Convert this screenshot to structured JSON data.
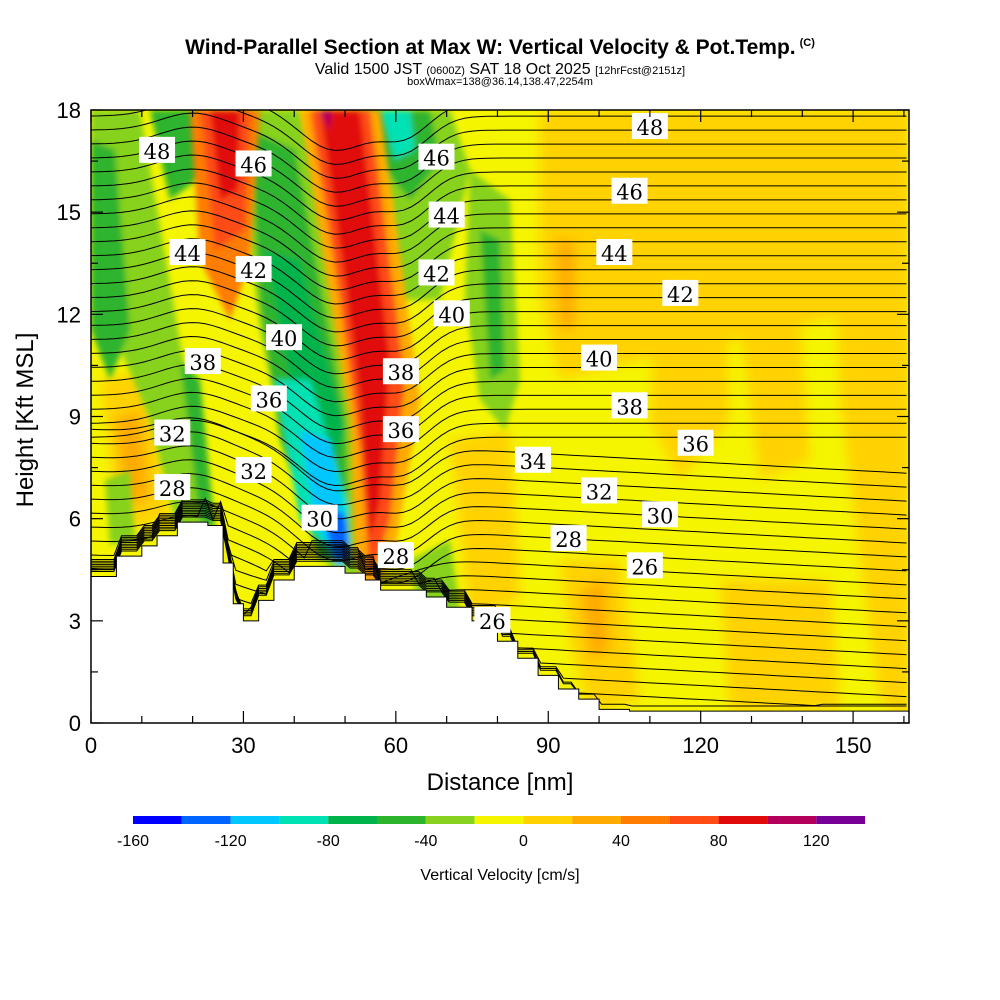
{
  "chart_data": {
    "type": "heatmap",
    "title": "Wind-Parallel Section at Max W: Vertical Velocity & Pot.Temp.",
    "title_mark": "(C)",
    "subtitle_main": "Valid 1500 JST",
    "subtitle_utc": "(0600Z)",
    "subtitle_date": "SAT 18 Oct 2025",
    "subtitle_fcst": "[12hrFcst@2151z]",
    "subtitle2": "boxWmax=138@36.14,138.47,2254m",
    "xlabel": "Distance [nm]",
    "ylabel": "Height [Kft MSL]",
    "xlim": [
      0,
      161
    ],
    "ylim": [
      0,
      18
    ],
    "x_ticks": [
      0,
      30,
      60,
      90,
      120,
      150
    ],
    "y_ticks": [
      0,
      3,
      6,
      9,
      12,
      15,
      18
    ],
    "colorbar": {
      "label": "Vertical Velocity [cm/s]",
      "min": -160,
      "max": 140,
      "tick_values": [
        -160,
        -120,
        -80,
        -40,
        0,
        40,
        80,
        120
      ],
      "colors": [
        "#0000ff",
        "#0064ff",
        "#00c8ff",
        "#00e1b4",
        "#00b44b",
        "#2db42d",
        "#87d21e",
        "#f5f500",
        "#ffd200",
        "#ffaa00",
        "#ff7d00",
        "#ff4b14",
        "#e10a0a",
        "#b4005a",
        "#780096"
      ]
    },
    "terrain_kft": [
      [
        0,
        4.3
      ],
      [
        5,
        4.9
      ],
      [
        10,
        5.2
      ],
      [
        13,
        5.5
      ],
      [
        17,
        5.9
      ],
      [
        23,
        5.8
      ],
      [
        26,
        4.7
      ],
      [
        28,
        3.5
      ],
      [
        30,
        3.0
      ],
      [
        33,
        3.6
      ],
      [
        36,
        4.2
      ],
      [
        40,
        4.6
      ],
      [
        46,
        4.6
      ],
      [
        50,
        4.4
      ],
      [
        54,
        4.2
      ],
      [
        57,
        3.9
      ],
      [
        60,
        3.9
      ],
      [
        66,
        3.7
      ],
      [
        70,
        3.4
      ],
      [
        75,
        3.0
      ],
      [
        80,
        2.4
      ],
      [
        84,
        1.9
      ],
      [
        88,
        1.4
      ],
      [
        92,
        1.0
      ],
      [
        96,
        0.7
      ],
      [
        100,
        0.4
      ],
      [
        106,
        0.35
      ],
      [
        161,
        0.35
      ]
    ],
    "theta_contour_labels": [
      {
        "text": "48",
        "x": 13,
        "y": 16.8
      },
      {
        "text": "46",
        "x": 32,
        "y": 16.4
      },
      {
        "text": "46",
        "x": 68,
        "y": 16.6
      },
      {
        "text": "48",
        "x": 110,
        "y": 17.5
      },
      {
        "text": "44",
        "x": 19,
        "y": 13.8
      },
      {
        "text": "44",
        "x": 70,
        "y": 14.9
      },
      {
        "text": "46",
        "x": 106,
        "y": 15.6
      },
      {
        "text": "42",
        "x": 32,
        "y": 13.3
      },
      {
        "text": "42",
        "x": 68,
        "y": 13.2
      },
      {
        "text": "44",
        "x": 103,
        "y": 13.8
      },
      {
        "text": "42",
        "x": 116,
        "y": 12.6
      },
      {
        "text": "40",
        "x": 38,
        "y": 11.3
      },
      {
        "text": "40",
        "x": 71,
        "y": 12.0
      },
      {
        "text": "40",
        "x": 100,
        "y": 10.7
      },
      {
        "text": "38",
        "x": 22,
        "y": 10.6
      },
      {
        "text": "38",
        "x": 61,
        "y": 10.3
      },
      {
        "text": "38",
        "x": 106,
        "y": 9.3
      },
      {
        "text": "36",
        "x": 35,
        "y": 9.5
      },
      {
        "text": "36",
        "x": 61,
        "y": 8.6
      },
      {
        "text": "36",
        "x": 119,
        "y": 8.2
      },
      {
        "text": "32",
        "x": 16,
        "y": 8.5
      },
      {
        "text": "34",
        "x": 87,
        "y": 7.7
      },
      {
        "text": "28",
        "x": 16,
        "y": 6.9
      },
      {
        "text": "32",
        "x": 32,
        "y": 7.4
      },
      {
        "text": "32",
        "x": 100,
        "y": 6.8
      },
      {
        "text": "30",
        "x": 112,
        "y": 6.1
      },
      {
        "text": "30",
        "x": 45,
        "y": 6.0
      },
      {
        "text": "28",
        "x": 60,
        "y": 4.9
      },
      {
        "text": "28",
        "x": 94,
        "y": 5.4
      },
      {
        "text": "26",
        "x": 109,
        "y": 4.6
      },
      {
        "text": "26",
        "x": 79,
        "y": 3.0
      }
    ]
  }
}
